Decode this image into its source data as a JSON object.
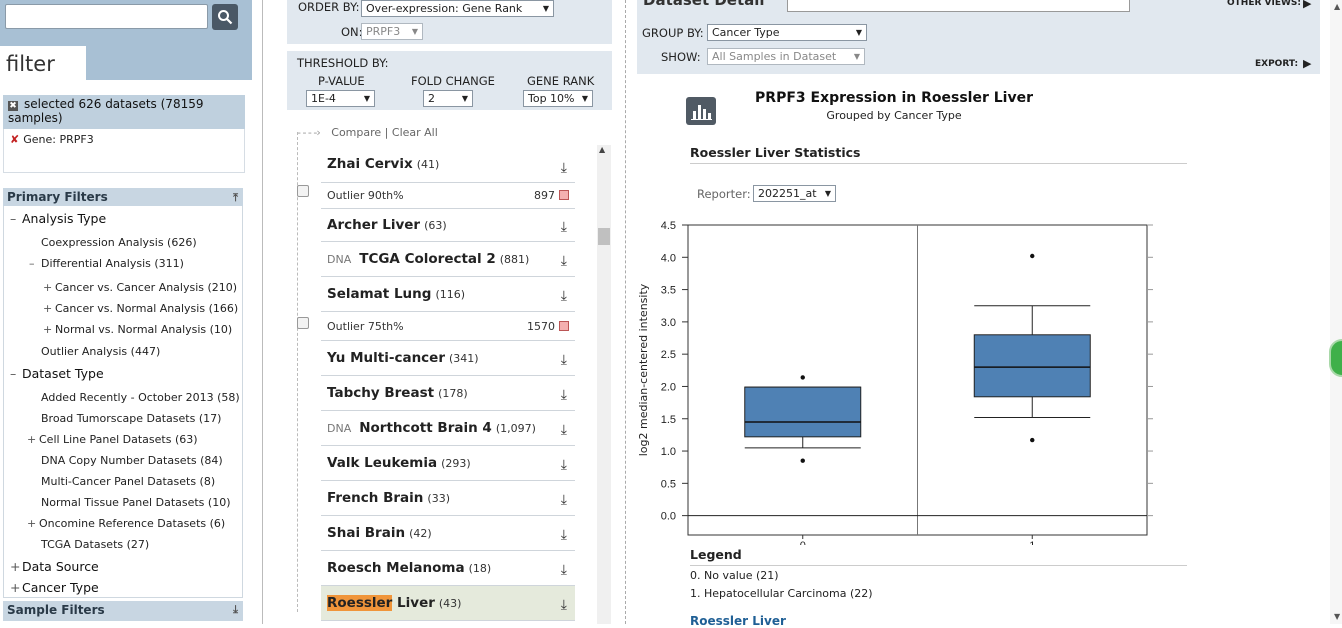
{
  "search": {
    "placeholder": "",
    "value": ""
  },
  "filter_tab": "filter",
  "selected": {
    "label": "selected 626 datasets (78159 samples)",
    "gene": "Gene: PRPF3"
  },
  "primary_filters": {
    "title": "Primary Filters",
    "analysis_type": "Analysis Type",
    "coexpression": "Coexpression Analysis (626)",
    "differential": "Differential Analysis (311)",
    "cancer_vs_cancer": "Cancer vs. Cancer Analysis (210)",
    "cancer_vs_normal": "Cancer vs. Normal Analysis (166)",
    "normal_vs_normal": "Normal vs. Normal Analysis (10)",
    "outlier": "Outlier Analysis (447)",
    "dataset_type": "Dataset Type",
    "added_recently": "Added Recently - October 2013 (58)",
    "broad": "Broad Tumorscape Datasets (17)",
    "cell_line": "Cell Line Panel Datasets (63)",
    "dna_copy": "DNA Copy Number Datasets (84)",
    "multi_cancer": "Multi-Cancer Panel Datasets (8)",
    "normal_tissue": "Normal Tissue Panel Datasets (10)",
    "oncomine_ref": "Oncomine Reference Datasets (6)",
    "tcga": "TCGA Datasets (27)",
    "data_source": "Data Source",
    "cancer_type": "Cancer Type"
  },
  "sample_filters": {
    "title": "Sample Filters"
  },
  "order": {
    "by_label": "ORDER BY:",
    "by_value": "Over-expression: Gene Rank",
    "on_label": "ON:",
    "on_value": "PRPF3"
  },
  "threshold": {
    "title": "THRESHOLD BY:",
    "pvalue_label": "P-VALUE",
    "pvalue": "1E-4",
    "fold_label": "FOLD CHANGE",
    "fold": "2",
    "rank_label": "GENE RANK",
    "rank": "Top 10%"
  },
  "compare": {
    "compare": "Compare",
    "sep": "|",
    "clear": "Clear All"
  },
  "datasets": {
    "r0": {
      "name": "Zhai Cervix",
      "count": "(41)"
    },
    "o0": {
      "label": "Outlier 90th%",
      "value": "897"
    },
    "r1": {
      "name": "Archer Liver",
      "count": "(63)"
    },
    "r2": {
      "dna": "DNA",
      "name": "TCGA Colorectal 2",
      "count": "(881)"
    },
    "r3": {
      "name": "Selamat Lung",
      "count": "(116)"
    },
    "o1": {
      "label": "Outlier 75th%",
      "value": "1570"
    },
    "r4": {
      "name": "Yu Multi-cancer",
      "count": "(341)"
    },
    "r5": {
      "name": "Tabchy Breast",
      "count": "(178)"
    },
    "r6": {
      "dna": "DNA",
      "name": "Northcott Brain 4",
      "count": "(1,097)"
    },
    "r7": {
      "name": "Valk Leukemia",
      "count": "(293)"
    },
    "r8": {
      "name": "French Brain",
      "count": "(33)"
    },
    "r9": {
      "name": "Shai Brain",
      "count": "(42)"
    },
    "r10": {
      "name": "Roesch Melanoma",
      "count": "(18)"
    },
    "r11": {
      "name_hl": "Roessler",
      "name_rest": " Liver",
      "count": "(43)"
    }
  },
  "detail": {
    "title": "Dataset Detail",
    "other_views": "OTHER VIEWS:",
    "group_label": "GROUP BY:",
    "group_value": "Cancer Type",
    "show_label": "SHOW:",
    "show_value": "All Samples in Dataset",
    "export": "EXPORT:"
  },
  "chart": {
    "title": "PRPF3 Expression in Roessler Liver",
    "subtitle": "Grouped by Cancer Type",
    "stats_title": "Roessler Liver Statistics",
    "reporter_label": "Reporter:",
    "reporter_value": "202251_at",
    "ylabel": "log2 median-centered intensity",
    "box_color": "#4f81b4"
  },
  "chart_data": {
    "type": "box",
    "categories": [
      "0",
      "1"
    ],
    "ylabel": "log2 median-centered intensity",
    "ylim": [
      -0.3,
      4.5
    ],
    "yticks": [
      "0.0",
      "0.5",
      "1.0",
      "1.5",
      "2.0",
      "2.5",
      "3.0",
      "3.5",
      "4.0",
      "4.5"
    ],
    "boxes": [
      {
        "category": "0",
        "whisker_low": 1.05,
        "q1": 1.22,
        "median": 1.45,
        "q3": 1.99,
        "whisker_high": 1.99,
        "outliers": [
          0.85,
          2.14
        ]
      },
      {
        "category": "1",
        "whisker_low": 1.52,
        "q1": 1.84,
        "median": 2.3,
        "q3": 2.8,
        "whisker_high": 3.25,
        "outliers": [
          1.17,
          4.02
        ]
      }
    ]
  },
  "legend": {
    "title": "Legend",
    "item0": "0. No value (21)",
    "item1": "1. Hepatocellular Carcinoma (22)",
    "link": "Roessler Liver"
  }
}
